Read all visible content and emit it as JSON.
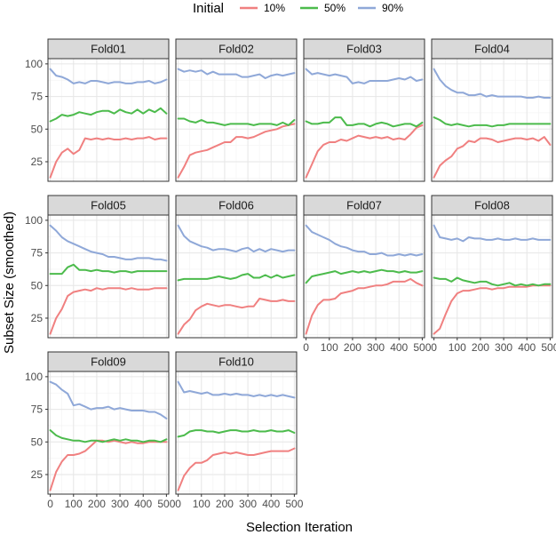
{
  "chart_data": {
    "type": "line",
    "xlabel": "Selection Iteration",
    "ylabel": "Subset Size (smoothed)",
    "xlim": [
      -10,
      510
    ],
    "ylim": [
      10,
      104
    ],
    "x_ticks": [
      0,
      100,
      200,
      300,
      400,
      500
    ],
    "y_ticks": [
      25,
      50,
      75,
      100
    ],
    "grid": true,
    "facet_columns": 4,
    "legend": {
      "title": "Initial",
      "position": "top",
      "entries": [
        {
          "label": "10%",
          "color": "#f08080"
        },
        {
          "label": "50%",
          "color": "#4cbb4c"
        },
        {
          "label": "90%",
          "color": "#8fa8d8"
        }
      ]
    },
    "x": [
      0,
      25,
      50,
      75,
      100,
      125,
      150,
      175,
      200,
      225,
      250,
      275,
      300,
      325,
      350,
      375,
      400,
      425,
      450,
      475,
      500
    ],
    "panels": [
      {
        "title": "Fold01",
        "series": [
          {
            "name": "10%",
            "values": [
              13,
              25,
              32,
              35,
              31,
              34,
              43,
              42,
              43,
              42,
              43,
              42,
              42,
              43,
              42,
              43,
              43,
              44,
              42,
              43,
              43
            ]
          },
          {
            "name": "50%",
            "values": [
              56,
              58,
              61,
              60,
              61,
              63,
              62,
              61,
              63,
              64,
              64,
              62,
              65,
              63,
              62,
              65,
              62,
              65,
              63,
              66,
              62
            ]
          },
          {
            "name": "90%",
            "values": [
              96,
              91,
              90,
              88,
              85,
              86,
              85,
              87,
              87,
              86,
              85,
              86,
              86,
              85,
              85,
              86,
              86,
              87,
              85,
              86,
              88
            ]
          }
        ]
      },
      {
        "title": "Fold02",
        "series": [
          {
            "name": "10%",
            "values": [
              13,
              21,
              30,
              32,
              33,
              34,
              36,
              38,
              40,
              40,
              44,
              44,
              43,
              44,
              46,
              48,
              49,
              50,
              52,
              53,
              54
            ]
          },
          {
            "name": "50%",
            "values": [
              58,
              58,
              56,
              55,
              57,
              55,
              55,
              54,
              53,
              54,
              54,
              54,
              54,
              53,
              54,
              54,
              54,
              53,
              55,
              53,
              57
            ]
          },
          {
            "name": "90%",
            "values": [
              96,
              94,
              95,
              94,
              95,
              92,
              94,
              92,
              92,
              92,
              92,
              90,
              90,
              91,
              92,
              89,
              91,
              92,
              91,
              92,
              93
            ]
          }
        ]
      },
      {
        "title": "Fold03",
        "series": [
          {
            "name": "10%",
            "values": [
              13,
              23,
              33,
              38,
              40,
              40,
              42,
              41,
              43,
              45,
              44,
              43,
              44,
              43,
              44,
              42,
              43,
              42,
              46,
              51,
              53
            ]
          },
          {
            "name": "50%",
            "values": [
              56,
              54,
              54,
              55,
              55,
              59,
              59,
              53,
              53,
              54,
              54,
              52,
              54,
              55,
              54,
              52,
              53,
              54,
              54,
              52,
              55
            ]
          },
          {
            "name": "90%",
            "values": [
              96,
              92,
              93,
              92,
              91,
              92,
              91,
              90,
              85,
              86,
              85,
              87,
              87,
              87,
              87,
              88,
              89,
              88,
              90,
              87,
              88
            ]
          }
        ]
      },
      {
        "title": "Fold04",
        "series": [
          {
            "name": "10%",
            "values": [
              13,
              22,
              26,
              29,
              35,
              37,
              41,
              40,
              43,
              43,
              42,
              40,
              41,
              42,
              43,
              43,
              42,
              43,
              41,
              44,
              38
            ]
          },
          {
            "name": "50%",
            "values": [
              59,
              57,
              54,
              53,
              54,
              53,
              52,
              53,
              53,
              53,
              52,
              53,
              53,
              54,
              54,
              54,
              54,
              54,
              54,
              54,
              54
            ]
          },
          {
            "name": "90%",
            "values": [
              96,
              88,
              83,
              80,
              78,
              78,
              76,
              76,
              77,
              75,
              76,
              75,
              75,
              75,
              75,
              75,
              74,
              74,
              75,
              74,
              74
            ]
          }
        ]
      },
      {
        "title": "Fold05",
        "series": [
          {
            "name": "10%",
            "values": [
              13,
              25,
              32,
              42,
              45,
              46,
              47,
              46,
              48,
              47,
              48,
              48,
              48,
              47,
              48,
              47,
              47,
              47,
              48,
              48,
              48
            ]
          },
          {
            "name": "50%",
            "values": [
              59,
              59,
              59,
              64,
              66,
              62,
              62,
              61,
              62,
              61,
              61,
              60,
              61,
              61,
              60,
              61,
              61,
              61,
              61,
              61,
              61
            ]
          },
          {
            "name": "90%",
            "values": [
              96,
              92,
              87,
              84,
              82,
              80,
              78,
              76,
              75,
              74,
              72,
              72,
              71,
              70,
              70,
              71,
              71,
              71,
              70,
              70,
              69
            ]
          }
        ]
      },
      {
        "title": "Fold06",
        "series": [
          {
            "name": "10%",
            "values": [
              13,
              20,
              24,
              31,
              34,
              36,
              35,
              34,
              35,
              35,
              34,
              33,
              34,
              34,
              40,
              39,
              38,
              38,
              39,
              38,
              38
            ]
          },
          {
            "name": "50%",
            "values": [
              54,
              55,
              55,
              55,
              55,
              55,
              56,
              57,
              56,
              55,
              56,
              58,
              59,
              56,
              56,
              58,
              56,
              58,
              56,
              57,
              58
            ]
          },
          {
            "name": "90%",
            "values": [
              96,
              88,
              84,
              82,
              80,
              79,
              77,
              78,
              78,
              77,
              76,
              78,
              79,
              76,
              78,
              76,
              78,
              77,
              76,
              77,
              77
            ]
          }
        ]
      },
      {
        "title": "Fold07",
        "series": [
          {
            "name": "10%",
            "values": [
              13,
              27,
              35,
              39,
              39,
              40,
              44,
              45,
              46,
              48,
              48,
              49,
              50,
              50,
              51,
              53,
              53,
              53,
              55,
              52,
              50
            ]
          },
          {
            "name": "50%",
            "values": [
              52,
              57,
              58,
              59,
              60,
              61,
              59,
              60,
              61,
              60,
              61,
              60,
              61,
              62,
              61,
              61,
              60,
              61,
              60,
              60,
              61
            ]
          },
          {
            "name": "90%",
            "values": [
              96,
              91,
              89,
              87,
              85,
              82,
              80,
              79,
              77,
              76,
              76,
              74,
              74,
              75,
              73,
              73,
              74,
              73,
              74,
              73,
              74
            ]
          }
        ]
      },
      {
        "title": "Fold08",
        "series": [
          {
            "name": "10%",
            "values": [
              13,
              17,
              28,
              38,
              44,
              46,
              46,
              47,
              48,
              48,
              47,
              48,
              48,
              49,
              49,
              49,
              49,
              50,
              50,
              50,
              50
            ]
          },
          {
            "name": "50%",
            "values": [
              56,
              55,
              55,
              53,
              56,
              54,
              53,
              52,
              53,
              53,
              51,
              50,
              51,
              52,
              50,
              51,
              50,
              51,
              50,
              51,
              51
            ]
          },
          {
            "name": "90%",
            "values": [
              96,
              87,
              86,
              85,
              86,
              84,
              87,
              86,
              86,
              85,
              85,
              86,
              85,
              85,
              86,
              85,
              85,
              86,
              85,
              85,
              85
            ]
          }
        ]
      },
      {
        "title": "Fold09",
        "series": [
          {
            "name": "10%",
            "values": [
              13,
              27,
              35,
              40,
              40,
              41,
              43,
              47,
              51,
              51,
              50,
              51,
              50,
              49,
              50,
              49,
              49,
              50,
              50,
              50,
              50
            ]
          },
          {
            "name": "50%",
            "values": [
              59,
              55,
              53,
              52,
              51,
              51,
              50,
              51,
              51,
              50,
              51,
              52,
              51,
              52,
              51,
              51,
              50,
              51,
              51,
              50,
              52
            ]
          },
          {
            "name": "90%",
            "values": [
              96,
              94,
              90,
              87,
              78,
              79,
              77,
              75,
              76,
              76,
              77,
              75,
              76,
              75,
              74,
              74,
              74,
              73,
              73,
              71,
              68
            ]
          }
        ]
      },
      {
        "title": "Fold10",
        "series": [
          {
            "name": "10%",
            "values": [
              13,
              24,
              30,
              34,
              34,
              36,
              40,
              41,
              42,
              41,
              42,
              41,
              40,
              40,
              41,
              42,
              43,
              43,
              43,
              43,
              45
            ]
          },
          {
            "name": "50%",
            "values": [
              54,
              55,
              58,
              59,
              59,
              58,
              58,
              57,
              58,
              59,
              59,
              58,
              58,
              59,
              58,
              58,
              59,
              58,
              58,
              59,
              57
            ]
          },
          {
            "name": "90%",
            "values": [
              96,
              88,
              89,
              88,
              87,
              88,
              86,
              86,
              87,
              86,
              87,
              86,
              86,
              85,
              86,
              85,
              86,
              85,
              86,
              85,
              84
            ]
          }
        ]
      }
    ]
  }
}
